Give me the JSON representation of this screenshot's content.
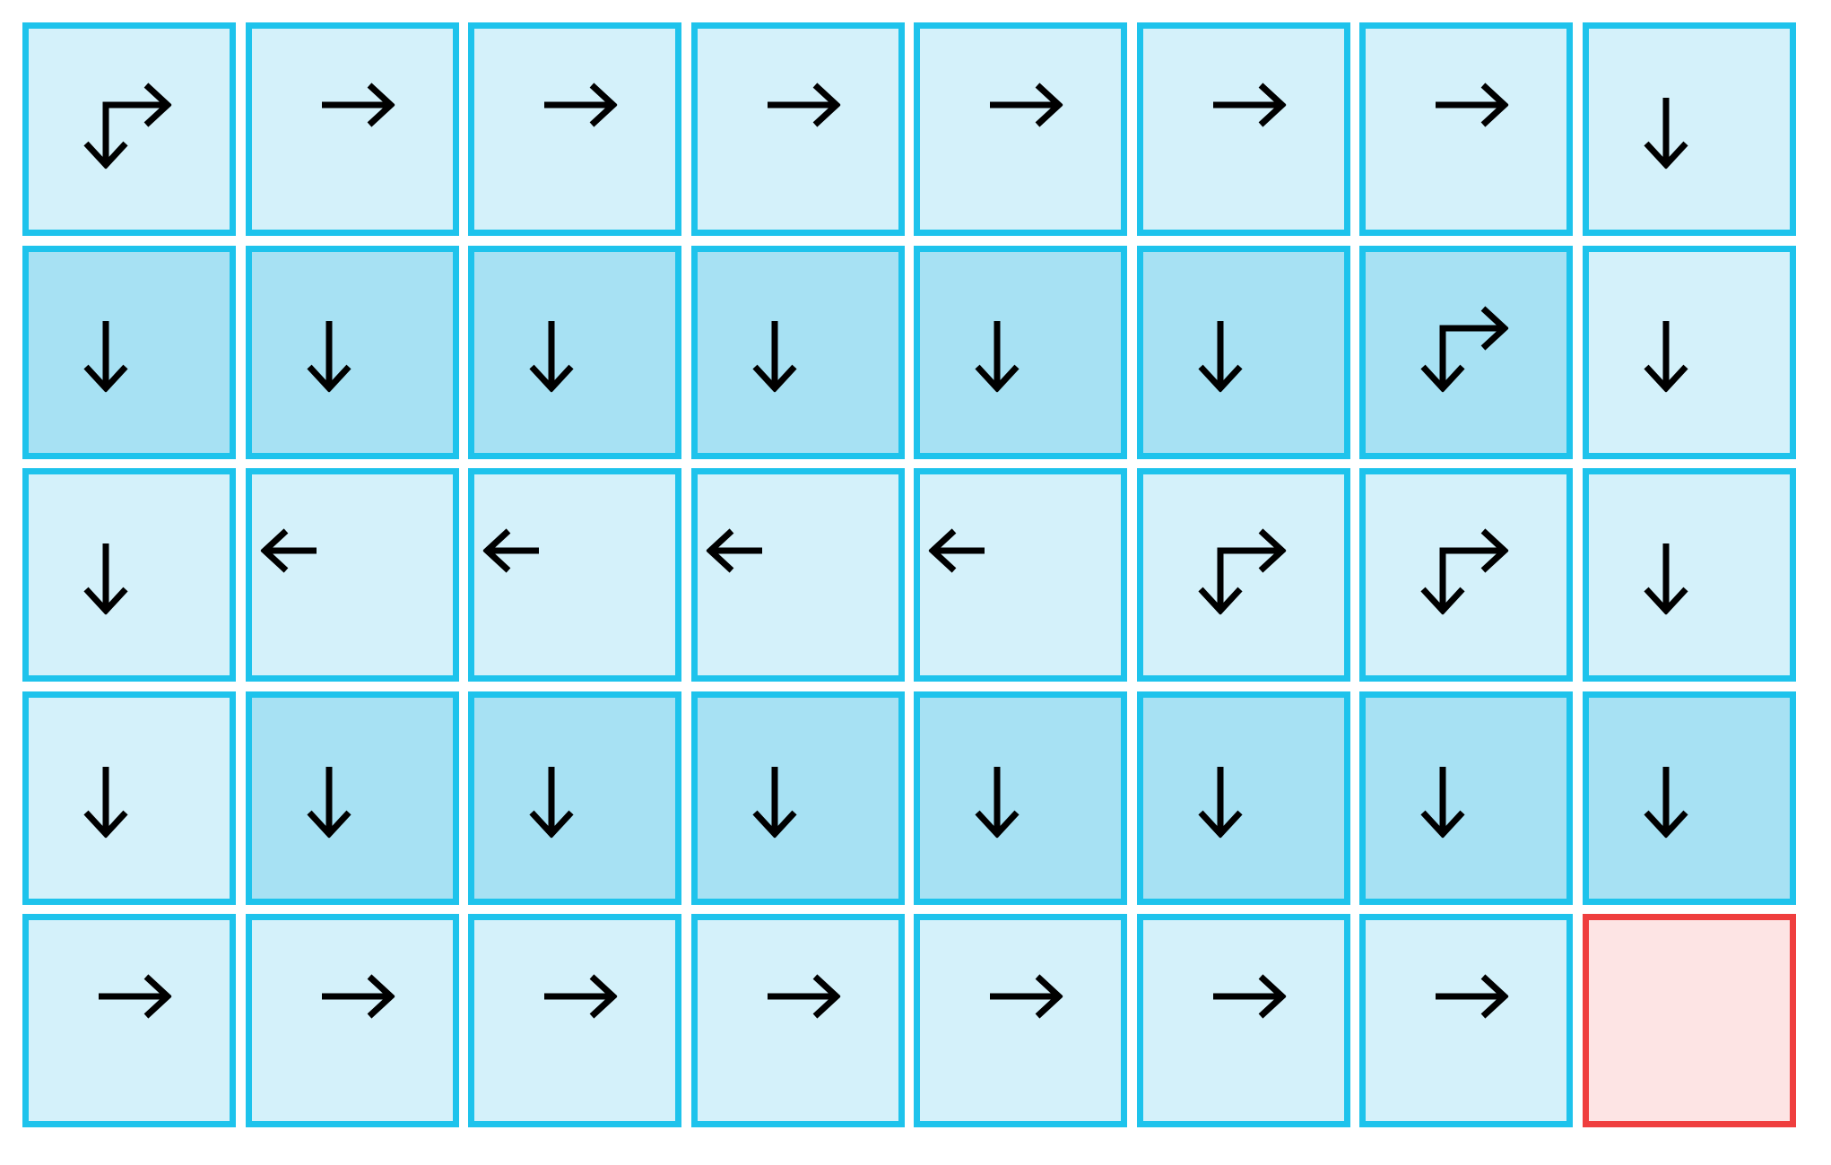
{
  "grid": {
    "rows": 5,
    "cols": 8,
    "colors": {
      "border": "#1ec3ec",
      "light": "#d4f1fa",
      "dark": "#a7e1f3",
      "goal_border": "#ef3e3e",
      "goal_fill": "#fde4e4",
      "arrow": "#000000"
    },
    "cells": [
      [
        {
          "arrows": [
            "right",
            "down"
          ],
          "shade": "light"
        },
        {
          "arrows": [
            "right"
          ],
          "shade": "light"
        },
        {
          "arrows": [
            "right"
          ],
          "shade": "light"
        },
        {
          "arrows": [
            "right"
          ],
          "shade": "light"
        },
        {
          "arrows": [
            "right"
          ],
          "shade": "light"
        },
        {
          "arrows": [
            "right"
          ],
          "shade": "light"
        },
        {
          "arrows": [
            "right"
          ],
          "shade": "light"
        },
        {
          "arrows": [
            "down"
          ],
          "shade": "light"
        }
      ],
      [
        {
          "arrows": [
            "down"
          ],
          "shade": "dark"
        },
        {
          "arrows": [
            "down"
          ],
          "shade": "dark"
        },
        {
          "arrows": [
            "down"
          ],
          "shade": "dark"
        },
        {
          "arrows": [
            "down"
          ],
          "shade": "dark"
        },
        {
          "arrows": [
            "down"
          ],
          "shade": "dark"
        },
        {
          "arrows": [
            "down"
          ],
          "shade": "dark"
        },
        {
          "arrows": [
            "right",
            "down"
          ],
          "shade": "dark"
        },
        {
          "arrows": [
            "down"
          ],
          "shade": "light"
        }
      ],
      [
        {
          "arrows": [
            "down"
          ],
          "shade": "light"
        },
        {
          "arrows": [
            "left"
          ],
          "shade": "light"
        },
        {
          "arrows": [
            "left"
          ],
          "shade": "light"
        },
        {
          "arrows": [
            "left"
          ],
          "shade": "light"
        },
        {
          "arrows": [
            "left"
          ],
          "shade": "light"
        },
        {
          "arrows": [
            "right",
            "down"
          ],
          "shade": "light"
        },
        {
          "arrows": [
            "right",
            "down"
          ],
          "shade": "light"
        },
        {
          "arrows": [
            "down"
          ],
          "shade": "light"
        }
      ],
      [
        {
          "arrows": [
            "down"
          ],
          "shade": "light"
        },
        {
          "arrows": [
            "down"
          ],
          "shade": "dark"
        },
        {
          "arrows": [
            "down"
          ],
          "shade": "dark"
        },
        {
          "arrows": [
            "down"
          ],
          "shade": "dark"
        },
        {
          "arrows": [
            "down"
          ],
          "shade": "dark"
        },
        {
          "arrows": [
            "down"
          ],
          "shade": "dark"
        },
        {
          "arrows": [
            "down"
          ],
          "shade": "dark"
        },
        {
          "arrows": [
            "down"
          ],
          "shade": "dark"
        }
      ],
      [
        {
          "arrows": [
            "right"
          ],
          "shade": "light"
        },
        {
          "arrows": [
            "right"
          ],
          "shade": "light"
        },
        {
          "arrows": [
            "right"
          ],
          "shade": "light"
        },
        {
          "arrows": [
            "right"
          ],
          "shade": "light"
        },
        {
          "arrows": [
            "right"
          ],
          "shade": "light"
        },
        {
          "arrows": [
            "right"
          ],
          "shade": "light"
        },
        {
          "arrows": [
            "right"
          ],
          "shade": "light"
        },
        {
          "arrows": [],
          "shade": "goal"
        }
      ]
    ]
  }
}
